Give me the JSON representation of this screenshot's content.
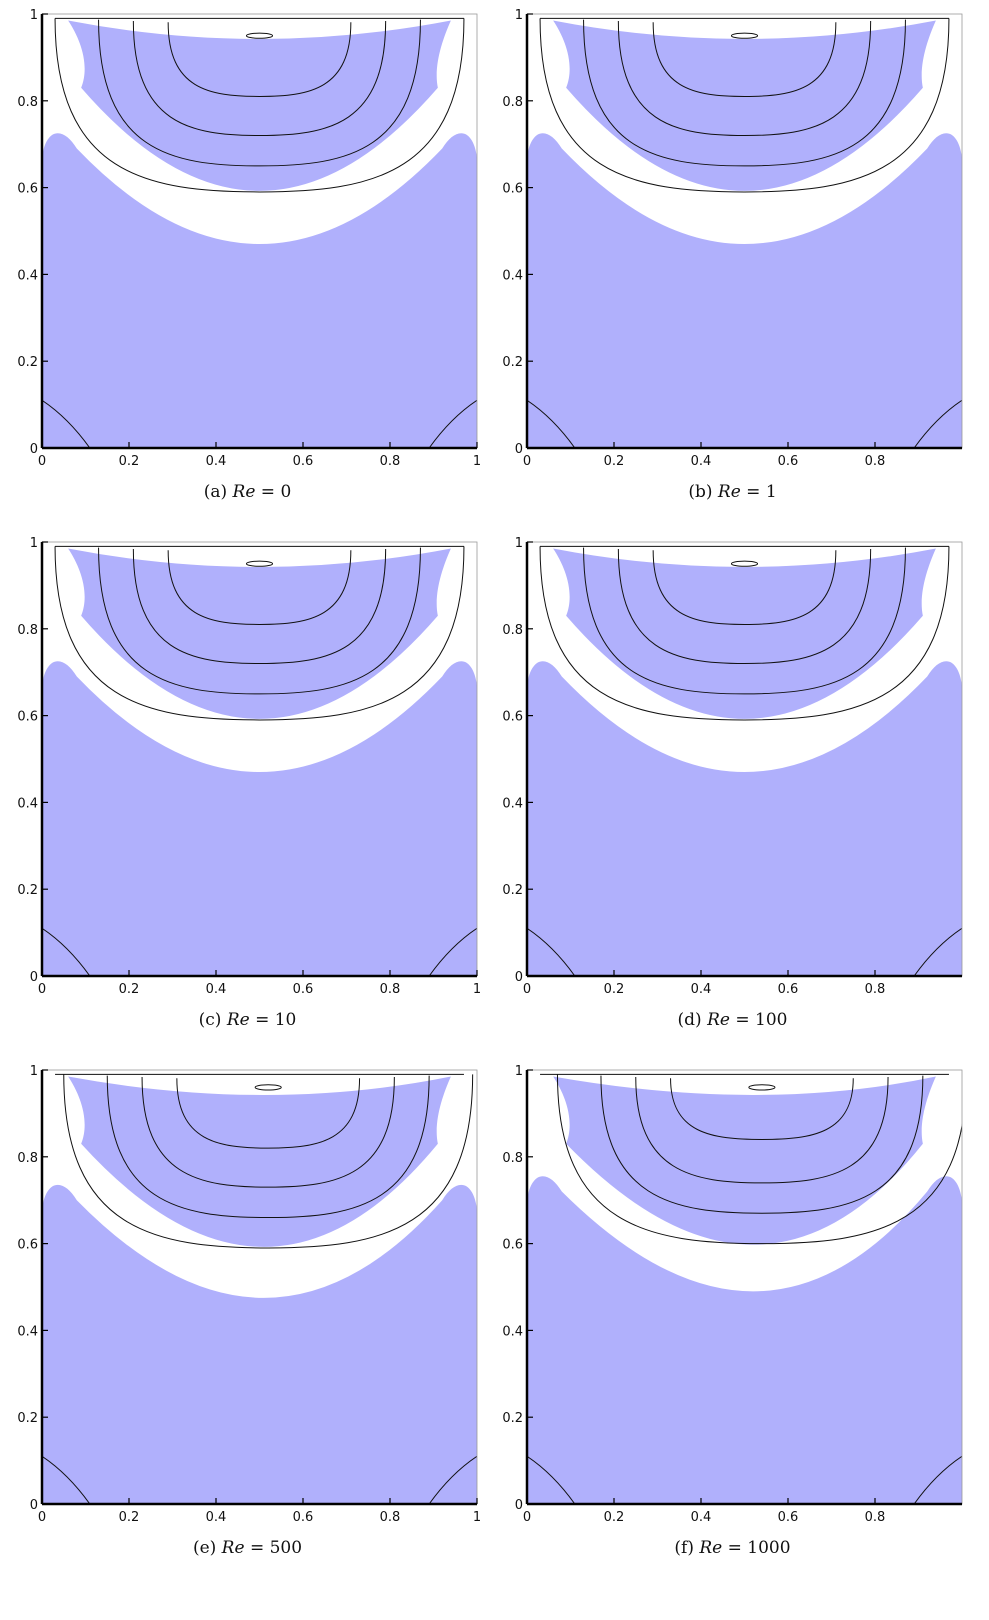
{
  "chart_data": [
    {
      "type": "contour",
      "caption_label": "(a)",
      "caption_var": "Re",
      "caption_eq": "= 0",
      "xticks": [
        "0",
        "0.2",
        "0.4",
        "0.6",
        "0.8",
        "1"
      ],
      "yticks": [
        "0",
        "0.2",
        "0.4",
        "0.6",
        "0.8",
        "1"
      ],
      "xlim": [
        0,
        1
      ],
      "ylim": [
        0,
        1
      ],
      "fill_color": "#b0b0fc",
      "outer_band_peak_y": 0.73,
      "outer_band_bottom_y": 0.48,
      "inner_region_bottom_y": 0.59,
      "streamline_bottoms": [
        0.59,
        0.65,
        0.72,
        0.81
      ],
      "vortex_center": [
        0.5,
        0.95
      ],
      "corner_lines": "bottom-left, bottom-right"
    },
    {
      "type": "contour",
      "caption_label": "(b)",
      "caption_var": "Re",
      "caption_eq": "= 1",
      "xticks": [
        "0",
        "0.2",
        "0.4",
        "0.6",
        "0.8"
      ],
      "yticks": [
        "0",
        "0.2",
        "0.4",
        "0.6",
        "0.8",
        "1"
      ],
      "xlim": [
        0,
        1
      ],
      "ylim": [
        0,
        1
      ],
      "fill_color": "#b0b0fc",
      "outer_band_peak_y": 0.73,
      "outer_band_bottom_y": 0.48,
      "inner_region_bottom_y": 0.59,
      "streamline_bottoms": [
        0.59,
        0.65,
        0.72,
        0.81
      ],
      "vortex_center": [
        0.5,
        0.95
      ],
      "corner_lines": "bottom-left, bottom-right"
    },
    {
      "type": "contour",
      "caption_label": "(c)",
      "caption_var": "Re",
      "caption_eq": "= 10",
      "xticks": [
        "0",
        "0.2",
        "0.4",
        "0.6",
        "0.8",
        "1"
      ],
      "yticks": [
        "0",
        "0.2",
        "0.4",
        "0.6",
        "0.8",
        "1"
      ],
      "xlim": [
        0,
        1
      ],
      "ylim": [
        0,
        1
      ],
      "fill_color": "#b0b0fc",
      "outer_band_peak_y": 0.73,
      "outer_band_bottom_y": 0.48,
      "inner_region_bottom_y": 0.59,
      "streamline_bottoms": [
        0.59,
        0.65,
        0.72,
        0.81
      ],
      "vortex_center": [
        0.5,
        0.95
      ],
      "corner_lines": "bottom-left, bottom-right"
    },
    {
      "type": "contour",
      "caption_label": "(d)",
      "caption_var": "Re",
      "caption_eq": "= 100",
      "xticks": [
        "0",
        "0.2",
        "0.4",
        "0.6",
        "0.8"
      ],
      "yticks": [
        "0",
        "0.2",
        "0.4",
        "0.6",
        "0.8",
        "1"
      ],
      "xlim": [
        0,
        1
      ],
      "ylim": [
        0,
        1
      ],
      "fill_color": "#b0b0fc",
      "outer_band_peak_y": 0.73,
      "outer_band_bottom_y": 0.48,
      "inner_region_bottom_y": 0.59,
      "streamline_bottoms": [
        0.59,
        0.65,
        0.72,
        0.81
      ],
      "vortex_center": [
        0.5,
        0.95
      ],
      "corner_lines": "bottom-left, bottom-right"
    },
    {
      "type": "contour",
      "caption_label": "(e)",
      "caption_var": "Re",
      "caption_eq": "= 500",
      "xticks": [
        "0",
        "0.2",
        "0.4",
        "0.6",
        "0.8",
        "1"
      ],
      "yticks": [
        "0",
        "0.2",
        "0.4",
        "0.6",
        "0.8",
        "1"
      ],
      "xlim": [
        0,
        1
      ],
      "ylim": [
        0,
        1
      ],
      "fill_color": "#b0b0fc",
      "outer_band_peak_y": 0.74,
      "outer_band_bottom_y": 0.48,
      "inner_region_bottom_y": 0.59,
      "streamline_bottoms": [
        0.59,
        0.66,
        0.73,
        0.82
      ],
      "vortex_center": [
        0.52,
        0.96
      ],
      "corner_lines": "bottom-left, bottom-right"
    },
    {
      "type": "contour",
      "caption_label": "(f)",
      "caption_var": "Re",
      "caption_eq": "= 1000",
      "xticks": [
        "0",
        "0.2",
        "0.4",
        "0.6",
        "0.8"
      ],
      "yticks": [
        "0",
        "0.2",
        "0.4",
        "0.6",
        "0.8",
        "1"
      ],
      "xlim": [
        0,
        1
      ],
      "ylim": [
        0,
        1
      ],
      "fill_color": "#b0b0fc",
      "outer_band_peak_y": 0.76,
      "outer_band_bottom_y": 0.49,
      "inner_region_bottom_y": 0.6,
      "streamline_bottoms": [
        0.6,
        0.67,
        0.74,
        0.84
      ],
      "vortex_center": [
        0.54,
        0.96
      ],
      "corner_lines": "bottom-left, bottom-right"
    }
  ]
}
